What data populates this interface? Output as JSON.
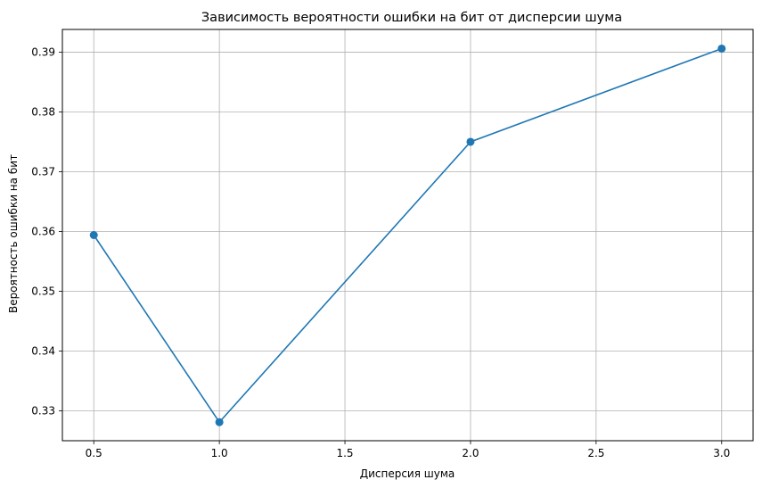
{
  "chart_data": {
    "type": "line",
    "title": "Зависимость вероятности ошибки на бит от дисперсии шума",
    "xlabel": "Дисперсия шума",
    "ylabel": "Вероятность ошибки на бит",
    "x": [
      0.5,
      1.0,
      2.0,
      3.0
    ],
    "y": [
      0.3594,
      0.3281,
      0.375,
      0.3906
    ],
    "xlim": [
      0.375,
      3.125
    ],
    "ylim": [
      0.325,
      0.3938
    ],
    "xticks": [
      0.5,
      1.0,
      1.5,
      2.0,
      2.5,
      3.0
    ],
    "xtick_labels": [
      "0.5",
      "1.0",
      "1.5",
      "2.0",
      "2.5",
      "3.0"
    ],
    "yticks": [
      0.33,
      0.34,
      0.35,
      0.36,
      0.37,
      0.38,
      0.39
    ],
    "ytick_labels": [
      "0.33",
      "0.34",
      "0.35",
      "0.36",
      "0.37",
      "0.38",
      "0.39"
    ],
    "grid": true,
    "marker": "circle",
    "color": "#1f77b4",
    "grid_color": "#b0b0b0"
  }
}
